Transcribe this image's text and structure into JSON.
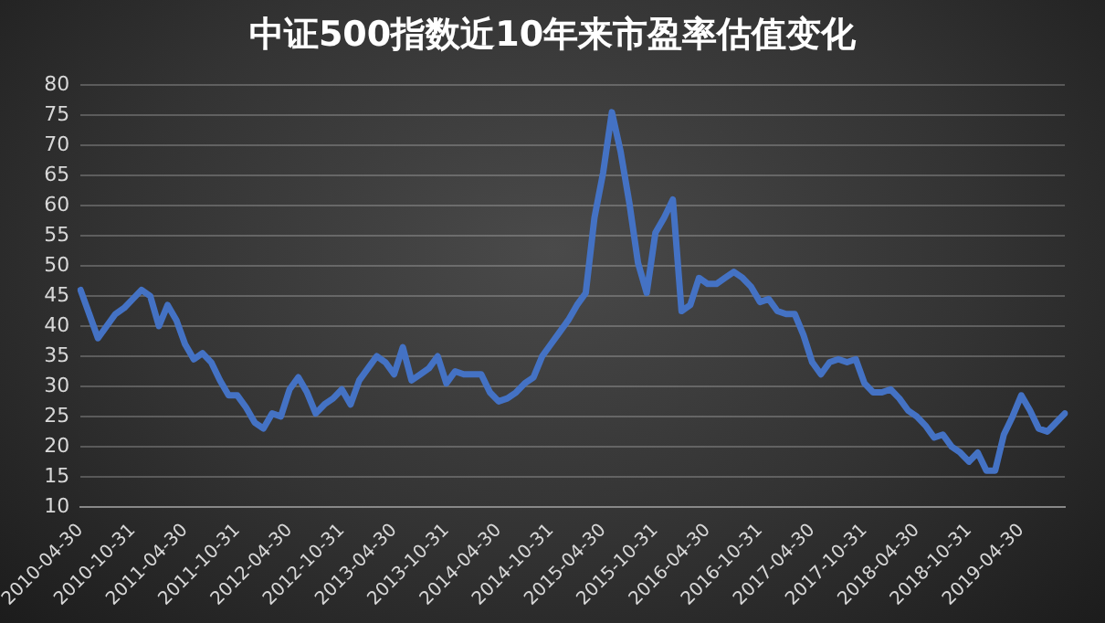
{
  "chart_data": {
    "type": "line",
    "title": "中证500指数近10年来市盈率估值变化",
    "categories": [
      "2010-04-30",
      null,
      null,
      null,
      null,
      null,
      "2010-10-31",
      null,
      null,
      null,
      null,
      null,
      "2011-04-30",
      null,
      null,
      null,
      null,
      null,
      "2011-10-31",
      null,
      null,
      null,
      null,
      null,
      "2012-04-30",
      null,
      null,
      null,
      null,
      null,
      "2012-10-31",
      null,
      null,
      null,
      null,
      null,
      "2013-04-30",
      null,
      null,
      null,
      null,
      null,
      "2013-10-31",
      null,
      null,
      null,
      null,
      null,
      "2014-04-30",
      null,
      null,
      null,
      null,
      null,
      "2014-10-31",
      null,
      null,
      null,
      null,
      null,
      "2015-04-30",
      null,
      null,
      null,
      null,
      null,
      "2015-10-31",
      null,
      null,
      null,
      null,
      null,
      "2016-04-30",
      null,
      null,
      null,
      null,
      null,
      "2016-10-31",
      null,
      null,
      null,
      null,
      null,
      "2017-04-30",
      null,
      null,
      null,
      null,
      null,
      "2017-10-31",
      null,
      null,
      null,
      null,
      null,
      "2018-04-30",
      null,
      null,
      null,
      null,
      null,
      "2018-10-31",
      null,
      null,
      null,
      null,
      null,
      "2019-04-30",
      null,
      null,
      null,
      null,
      null
    ],
    "series": [
      {
        "color": "#4472c4",
        "values": [
          46,
          42,
          38,
          40,
          42,
          43,
          44.5,
          46,
          45,
          40,
          43.5,
          41,
          37,
          34.5,
          35.5,
          34,
          31,
          28.5,
          28.5,
          26.5,
          24,
          23,
          25.5,
          25,
          29.5,
          31.5,
          29,
          25.5,
          27,
          28,
          29.5,
          27,
          31,
          33,
          35,
          34,
          32,
          36.5,
          31,
          32,
          33,
          35,
          30.5,
          32.5,
          32,
          32,
          32,
          29,
          27.5,
          28,
          29,
          30.5,
          31.5,
          35,
          37,
          39,
          41,
          43.5,
          45.5,
          58,
          65.5,
          75.5,
          69,
          60.5,
          50.5,
          45.5,
          55.5,
          58,
          61,
          42.5,
          43.5,
          48,
          47,
          47,
          48,
          49,
          48,
          46.5,
          44,
          44.5,
          42.5,
          42,
          42,
          38.5,
          34,
          32,
          34,
          34.5,
          34,
          34.5,
          30.5,
          29,
          29,
          29.5,
          28,
          26,
          25,
          23.5,
          21.5,
          22,
          20,
          19,
          17.5,
          19,
          16,
          16,
          22,
          25,
          28.5,
          26,
          23,
          22.5,
          24,
          25.5
        ]
      }
    ],
    "ylim": [
      10,
      80
    ],
    "yticks": [
      10,
      15,
      20,
      25,
      30,
      35,
      40,
      45,
      50,
      55,
      60,
      65,
      70,
      75,
      80
    ],
    "grid": "y",
    "legend": false
  }
}
